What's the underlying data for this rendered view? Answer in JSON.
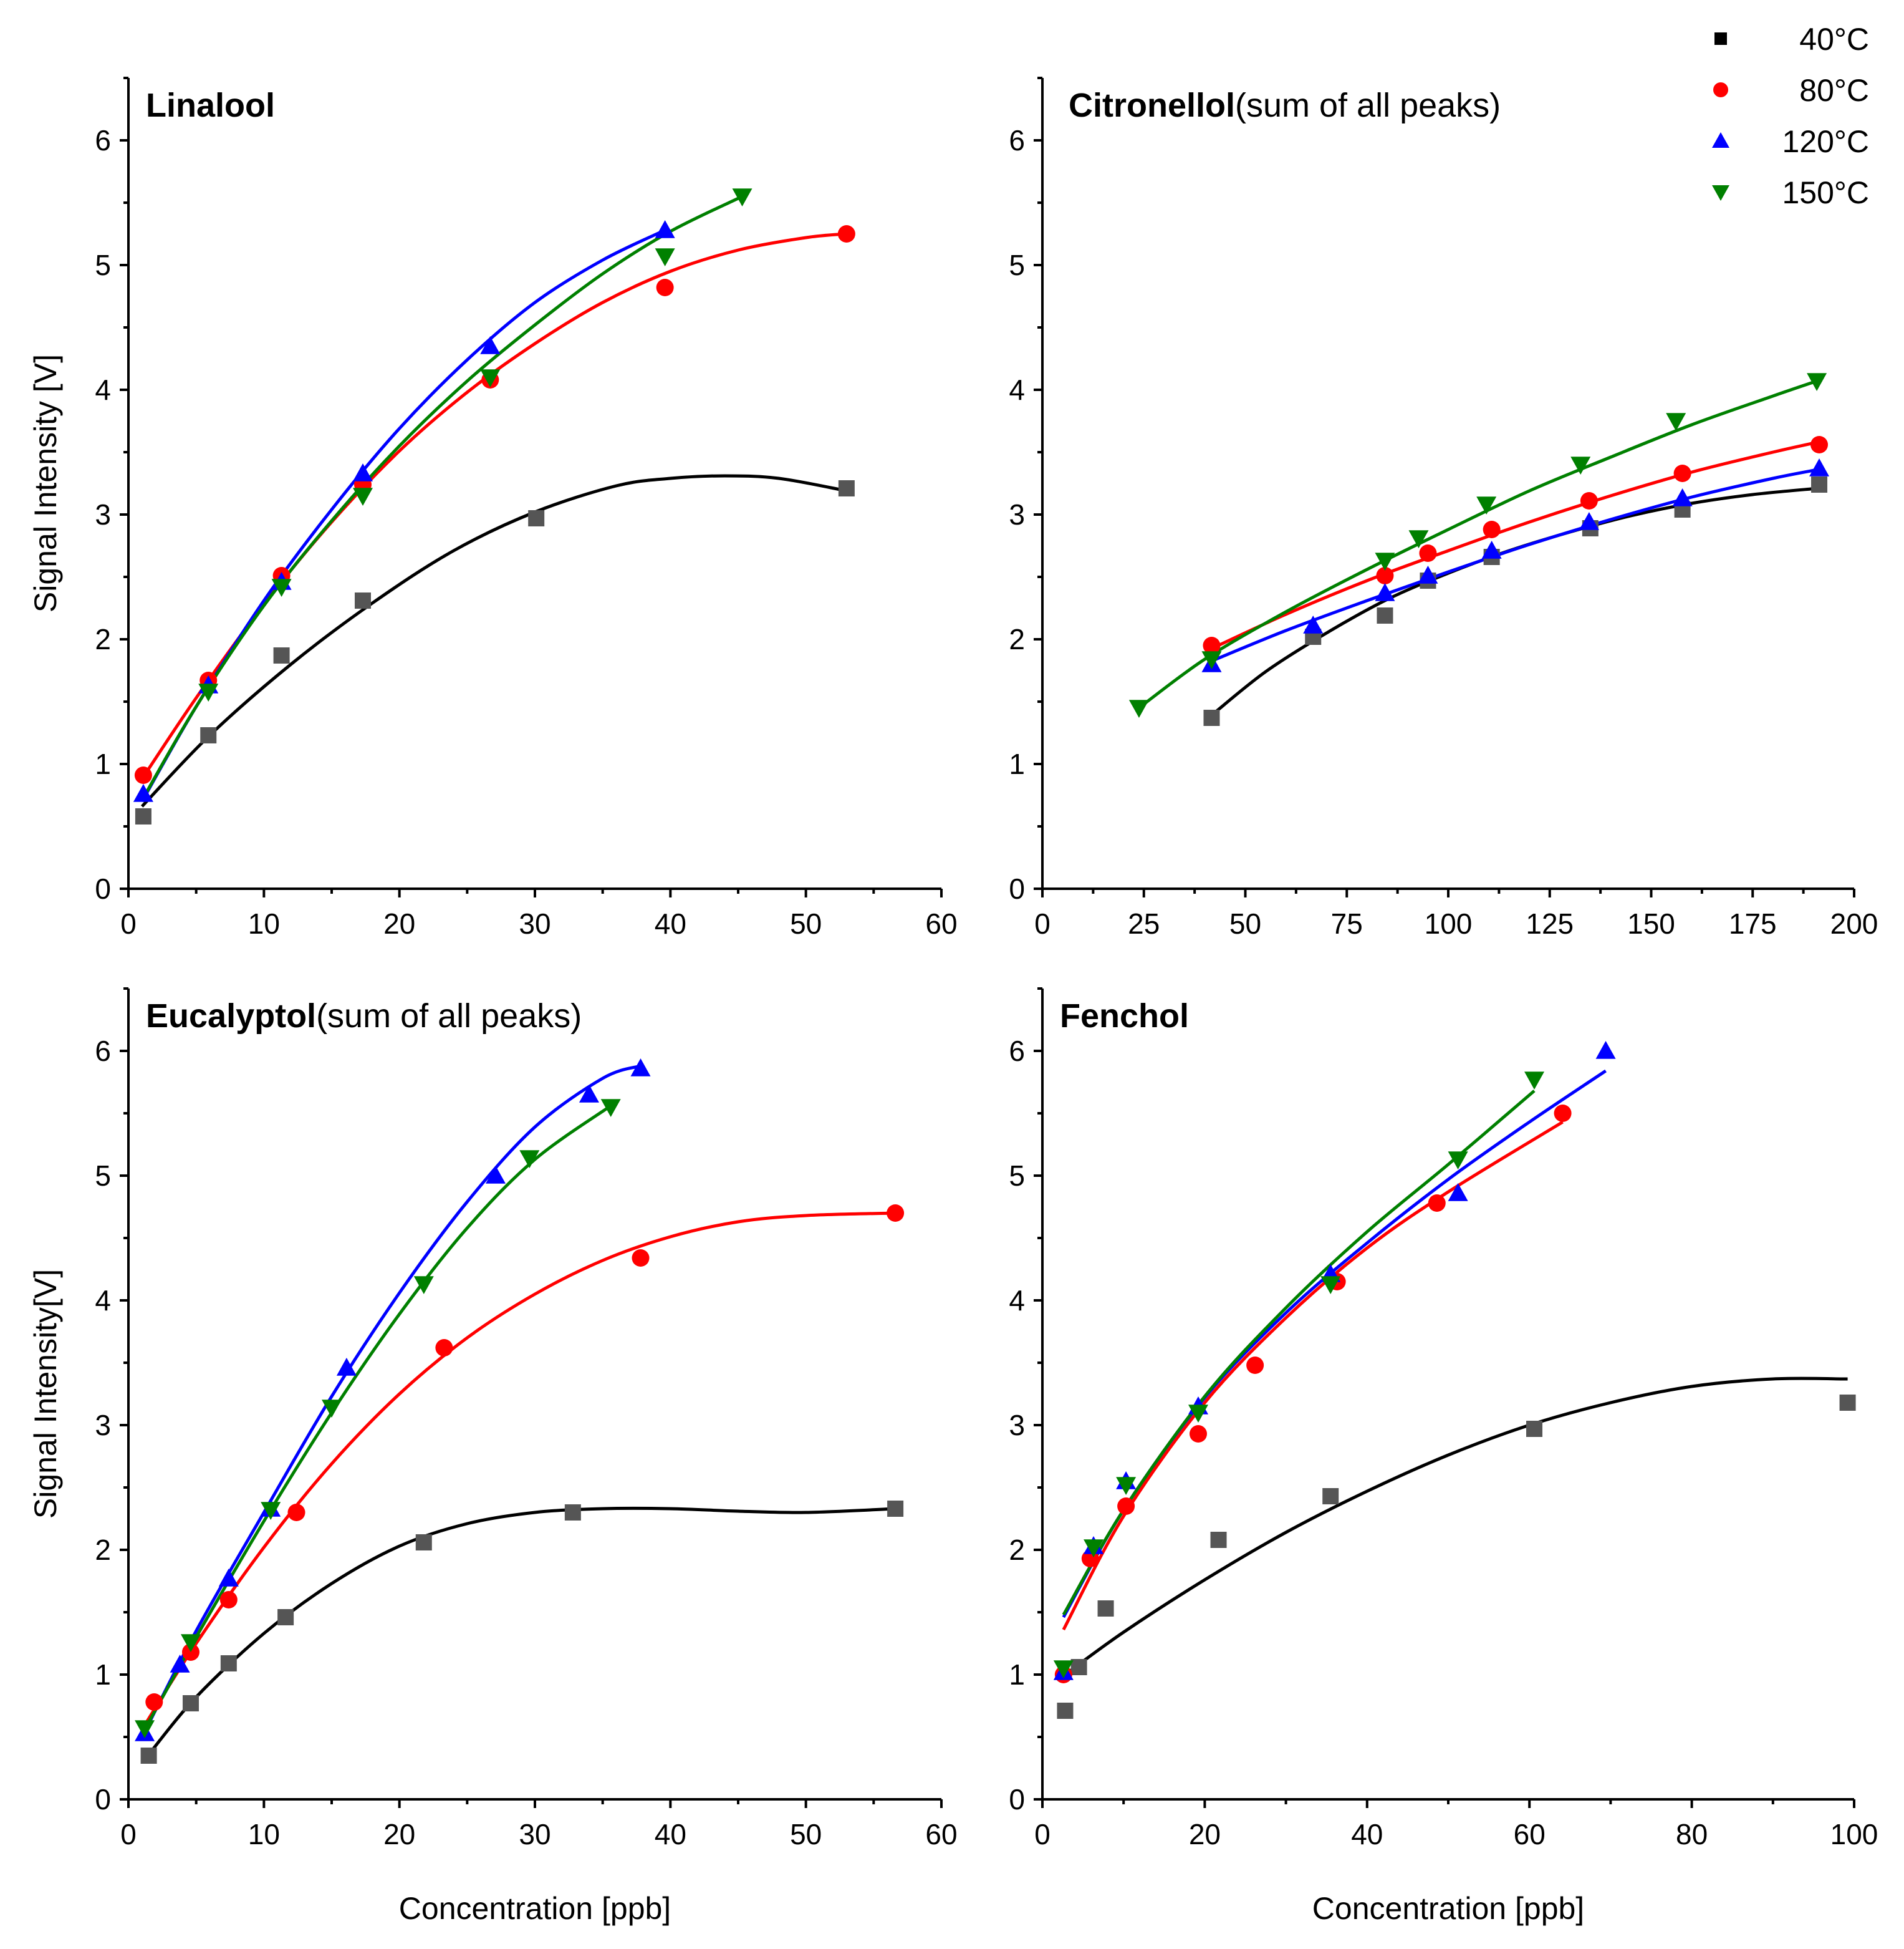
{
  "legend": [
    {
      "label": "40°C",
      "color": "#000000",
      "marker": "square"
    },
    {
      "label": "80°C",
      "color": "#ff0000",
      "marker": "circle"
    },
    {
      "label": "120°C",
      "color": "#0000ff",
      "marker": "triangle-up"
    },
    {
      "label": "150°C",
      "color": "#008000",
      "marker": "triangle-down"
    }
  ],
  "point_colors": [
    "#555555",
    "#ff0000",
    "#0000ff",
    "#008000"
  ],
  "chart_data": [
    {
      "type": "scatter",
      "title": "Linalool",
      "subtitle": "",
      "xlabel": "",
      "ylabel": "Signal Intensity [V]",
      "xlim": [
        0,
        60
      ],
      "ylim": [
        0,
        6.5
      ],
      "xticks": [
        0,
        10,
        20,
        30,
        40,
        50,
        60
      ],
      "yticks": [
        0,
        1,
        2,
        3,
        4,
        5,
        6
      ],
      "series": [
        {
          "name": "40°C",
          "x": [
            1.1,
            5.9,
            11.3,
            17.3,
            30.1,
            53.0
          ],
          "y": [
            0.58,
            1.23,
            1.87,
            2.31,
            2.97,
            3.21
          ],
          "fit_x": [
            1,
            6,
            12,
            18,
            24,
            30,
            36,
            40,
            44,
            48,
            53
          ],
          "fit_y": [
            0.66,
            1.23,
            1.8,
            2.29,
            2.71,
            3.02,
            3.23,
            3.29,
            3.31,
            3.29,
            3.19
          ]
        },
        {
          "name": "80°C",
          "x": [
            1.1,
            5.9,
            11.3,
            17.3,
            26.7,
            39.6,
            53.0
          ],
          "y": [
            0.91,
            1.67,
            2.51,
            3.24,
            4.08,
            4.82,
            5.25
          ],
          "fit_x": [
            1,
            5,
            10,
            15,
            20,
            25,
            30,
            35,
            40,
            45,
            50,
            53
          ],
          "fit_y": [
            0.88,
            1.53,
            2.28,
            2.94,
            3.51,
            3.98,
            4.37,
            4.7,
            4.95,
            5.12,
            5.22,
            5.25
          ]
        },
        {
          "name": "120°C",
          "x": [
            1.1,
            5.9,
            11.3,
            17.3,
            26.7,
            39.6
          ],
          "y": [
            0.76,
            1.63,
            2.46,
            3.33,
            4.35,
            5.28
          ],
          "fit_x": [
            1,
            5,
            10,
            15,
            20,
            25,
            30,
            35,
            39.6
          ],
          "fit_y": [
            0.7,
            1.46,
            2.31,
            3.04,
            3.69,
            4.24,
            4.7,
            5.04,
            5.28
          ]
        },
        {
          "name": "150°C",
          "x": [
            5.9,
            11.3,
            17.3,
            26.7,
            39.6,
            45.3
          ],
          "y": [
            1.58,
            2.42,
            3.15,
            4.1,
            5.07,
            5.55
          ],
          "fit_x": [
            1,
            5,
            10,
            15,
            20,
            25,
            30,
            35,
            40,
            45.3
          ],
          "fit_y": [
            0.71,
            1.46,
            2.27,
            2.95,
            3.55,
            4.07,
            4.52,
            4.93,
            5.27,
            5.55
          ]
        }
      ]
    },
    {
      "type": "scatter",
      "title": "Citronellol",
      "subtitle": "(sum of all peaks)",
      "xlabel": "",
      "ylabel": "",
      "xlim": [
        0,
        200
      ],
      "ylim": [
        0,
        6.5
      ],
      "xticks": [
        0,
        25,
        50,
        75,
        100,
        125,
        150,
        175,
        200
      ],
      "yticks": [
        0,
        1,
        2,
        3,
        4,
        5,
        6
      ],
      "series": [
        {
          "name": "40°C",
          "x": [
            41.7,
            66.7,
            84.4,
            95.0,
            110.7,
            135.0,
            157.7,
            191.4
          ],
          "y": [
            1.37,
            2.02,
            2.19,
            2.47,
            2.66,
            2.89,
            3.04,
            3.24
          ],
          "fit_x": [
            42,
            55,
            70,
            85,
            100,
            115,
            130,
            145,
            160,
            175,
            191
          ],
          "fit_y": [
            1.4,
            1.74,
            2.05,
            2.32,
            2.53,
            2.71,
            2.86,
            2.99,
            3.09,
            3.16,
            3.21
          ]
        },
        {
          "name": "80°C",
          "x": [
            41.7,
            84.4,
            95.0,
            110.7,
            134.7,
            157.7,
            191.4
          ],
          "y": [
            1.95,
            2.51,
            2.69,
            2.88,
            3.11,
            3.33,
            3.56
          ],
          "fit_x": [
            42,
            60,
            80,
            100,
            120,
            140,
            160,
            180,
            191
          ],
          "fit_y": [
            1.93,
            2.2,
            2.47,
            2.71,
            2.94,
            3.15,
            3.34,
            3.5,
            3.58
          ]
        },
        {
          "name": "120°C",
          "x": [
            41.7,
            66.7,
            84.4,
            95.0,
            110.7,
            134.7,
            157.7,
            191.4
          ],
          "y": [
            1.8,
            2.11,
            2.37,
            2.51,
            2.71,
            2.94,
            3.13,
            3.37
          ],
          "fit_x": [
            42,
            60,
            80,
            100,
            120,
            140,
            160,
            180,
            191
          ],
          "fit_y": [
            1.83,
            2.07,
            2.31,
            2.54,
            2.76,
            2.96,
            3.14,
            3.29,
            3.36
          ]
        },
        {
          "name": "150°C",
          "x": [
            23.8,
            41.7,
            84.4,
            92.7,
            109.4,
            132.6,
            156.1,
            190.8
          ],
          "y": [
            1.45,
            1.84,
            2.63,
            2.81,
            3.08,
            3.4,
            3.75,
            4.07
          ],
          "fit_x": [
            23.8,
            40,
            60,
            80,
            100,
            120,
            140,
            160,
            180,
            190.8
          ],
          "fit_y": [
            1.45,
            1.84,
            2.22,
            2.56,
            2.88,
            3.19,
            3.46,
            3.72,
            3.95,
            4.07
          ]
        }
      ]
    },
    {
      "type": "scatter",
      "title": "Eucalyptol",
      "subtitle": "(sum of all peaks)",
      "xlabel": "Concentration [ppb]",
      "ylabel": "Signal Intensity[V]",
      "xlim": [
        0,
        60
      ],
      "ylim": [
        0,
        6.5
      ],
      "xticks": [
        0,
        10,
        20,
        30,
        40,
        50,
        60
      ],
      "yticks": [
        0,
        1,
        2,
        3,
        4,
        5,
        6
      ],
      "series": [
        {
          "name": "40°C",
          "x": [
            1.5,
            4.6,
            7.4,
            11.6,
            21.8,
            32.8,
            56.6
          ],
          "y": [
            0.35,
            0.77,
            1.09,
            1.46,
            2.06,
            2.3,
            2.33
          ],
          "fit_x": [
            1.5,
            5,
            10,
            15,
            20,
            25,
            30,
            35,
            40,
            45,
            50,
            56.6
          ],
          "fit_y": [
            0.36,
            0.82,
            1.33,
            1.73,
            2.03,
            2.21,
            2.3,
            2.33,
            2.33,
            2.31,
            2.3,
            2.33
          ]
        },
        {
          "name": "80°C",
          "x": [
            1.9,
            4.6,
            7.4,
            12.4,
            23.3,
            37.8,
            56.6
          ],
          "y": [
            0.78,
            1.18,
            1.6,
            2.3,
            3.62,
            4.34,
            4.7
          ],
          "fit_x": [
            1,
            5,
            10,
            15,
            20,
            25,
            30,
            35,
            40,
            45,
            50,
            56.6
          ],
          "fit_y": [
            0.56,
            1.25,
            2.02,
            2.69,
            3.25,
            3.7,
            4.05,
            4.32,
            4.51,
            4.63,
            4.68,
            4.7
          ]
        },
        {
          "name": "120°C",
          "x": [
            1.2,
            3.8,
            7.4,
            10.5,
            16.1,
            27.1,
            34.0,
            37.8
          ],
          "y": [
            0.53,
            1.08,
            1.77,
            2.33,
            3.46,
            5.0,
            5.65,
            5.86
          ],
          "fit_x": [
            1.2,
            5,
            10,
            15,
            20,
            25,
            30,
            35,
            37.8
          ],
          "fit_y": [
            0.54,
            1.35,
            2.3,
            3.23,
            4.06,
            4.79,
            5.39,
            5.78,
            5.88
          ]
        },
        {
          "name": "150°C",
          "x": [
            1.2,
            4.6,
            10.5,
            15.0,
            21.8,
            29.6,
            35.6
          ],
          "y": [
            0.57,
            1.26,
            2.32,
            3.14,
            4.13,
            5.14,
            5.55
          ],
          "fit_x": [
            1.2,
            5,
            10,
            15,
            20,
            25,
            30,
            35.6
          ],
          "fit_y": [
            0.56,
            1.3,
            2.23,
            3.1,
            3.89,
            4.58,
            5.13,
            5.56
          ]
        }
      ]
    },
    {
      "type": "scatter",
      "title": "Fenchol",
      "subtitle": "",
      "xlabel": "Concentration [ppb]",
      "ylabel": "",
      "xlim": [
        0,
        100
      ],
      "ylim": [
        0,
        6.5
      ],
      "xticks": [
        0,
        20,
        40,
        60,
        80,
        100
      ],
      "yticks": [
        0,
        1,
        2,
        3,
        4,
        5,
        6
      ],
      "series": [
        {
          "name": "40°C",
          "x": [
            2.8,
            4.5,
            7.8,
            21.7,
            35.5,
            60.6,
            99.2
          ],
          "y": [
            0.71,
            1.06,
            1.53,
            2.08,
            2.43,
            2.97,
            3.18
          ],
          "fit_x": [
            2.8,
            10,
            20,
            30,
            40,
            50,
            60,
            70,
            80,
            90,
            99.2
          ],
          "fit_y": [
            1.0,
            1.34,
            1.76,
            2.14,
            2.47,
            2.76,
            3.0,
            3.18,
            3.31,
            3.37,
            3.37
          ]
        },
        {
          "name": "80°C",
          "x": [
            2.6,
            5.9,
            10.3,
            19.2,
            26.2,
            36.3,
            48.6,
            64.1
          ],
          "y": [
            1.0,
            1.93,
            2.35,
            2.93,
            3.48,
            4.15,
            4.78,
            5.5
          ],
          "fit_x": [
            2.6,
            10,
            20,
            30,
            40,
            50,
            64.1
          ],
          "fit_y": [
            1.36,
            2.27,
            3.18,
            3.86,
            4.42,
            4.87,
            5.43
          ]
        },
        {
          "name": "120°C",
          "x": [
            2.6,
            6.3,
            10.3,
            19.2,
            35.5,
            51.2,
            69.4
          ],
          "y": [
            1.02,
            2.03,
            2.55,
            3.15,
            4.21,
            4.86,
            6.0
          ],
          "fit_x": [
            2.6,
            10,
            20,
            30,
            40,
            50,
            60,
            69.4
          ],
          "fit_y": [
            1.46,
            2.32,
            3.22,
            3.9,
            4.46,
            4.97,
            5.43,
            5.84
          ]
        },
        {
          "name": "150°C",
          "x": [
            2.6,
            6.3,
            10.3,
            19.2,
            35.5,
            51.2,
            60.6
          ],
          "y": [
            1.05,
            2.02,
            2.52,
            3.1,
            4.13,
            5.13,
            5.77
          ],
          "fit_x": [
            2.6,
            10,
            20,
            30,
            40,
            50,
            60.6
          ],
          "fit_y": [
            1.48,
            2.32,
            3.23,
            3.94,
            4.55,
            5.09,
            5.68
          ]
        }
      ]
    }
  ]
}
